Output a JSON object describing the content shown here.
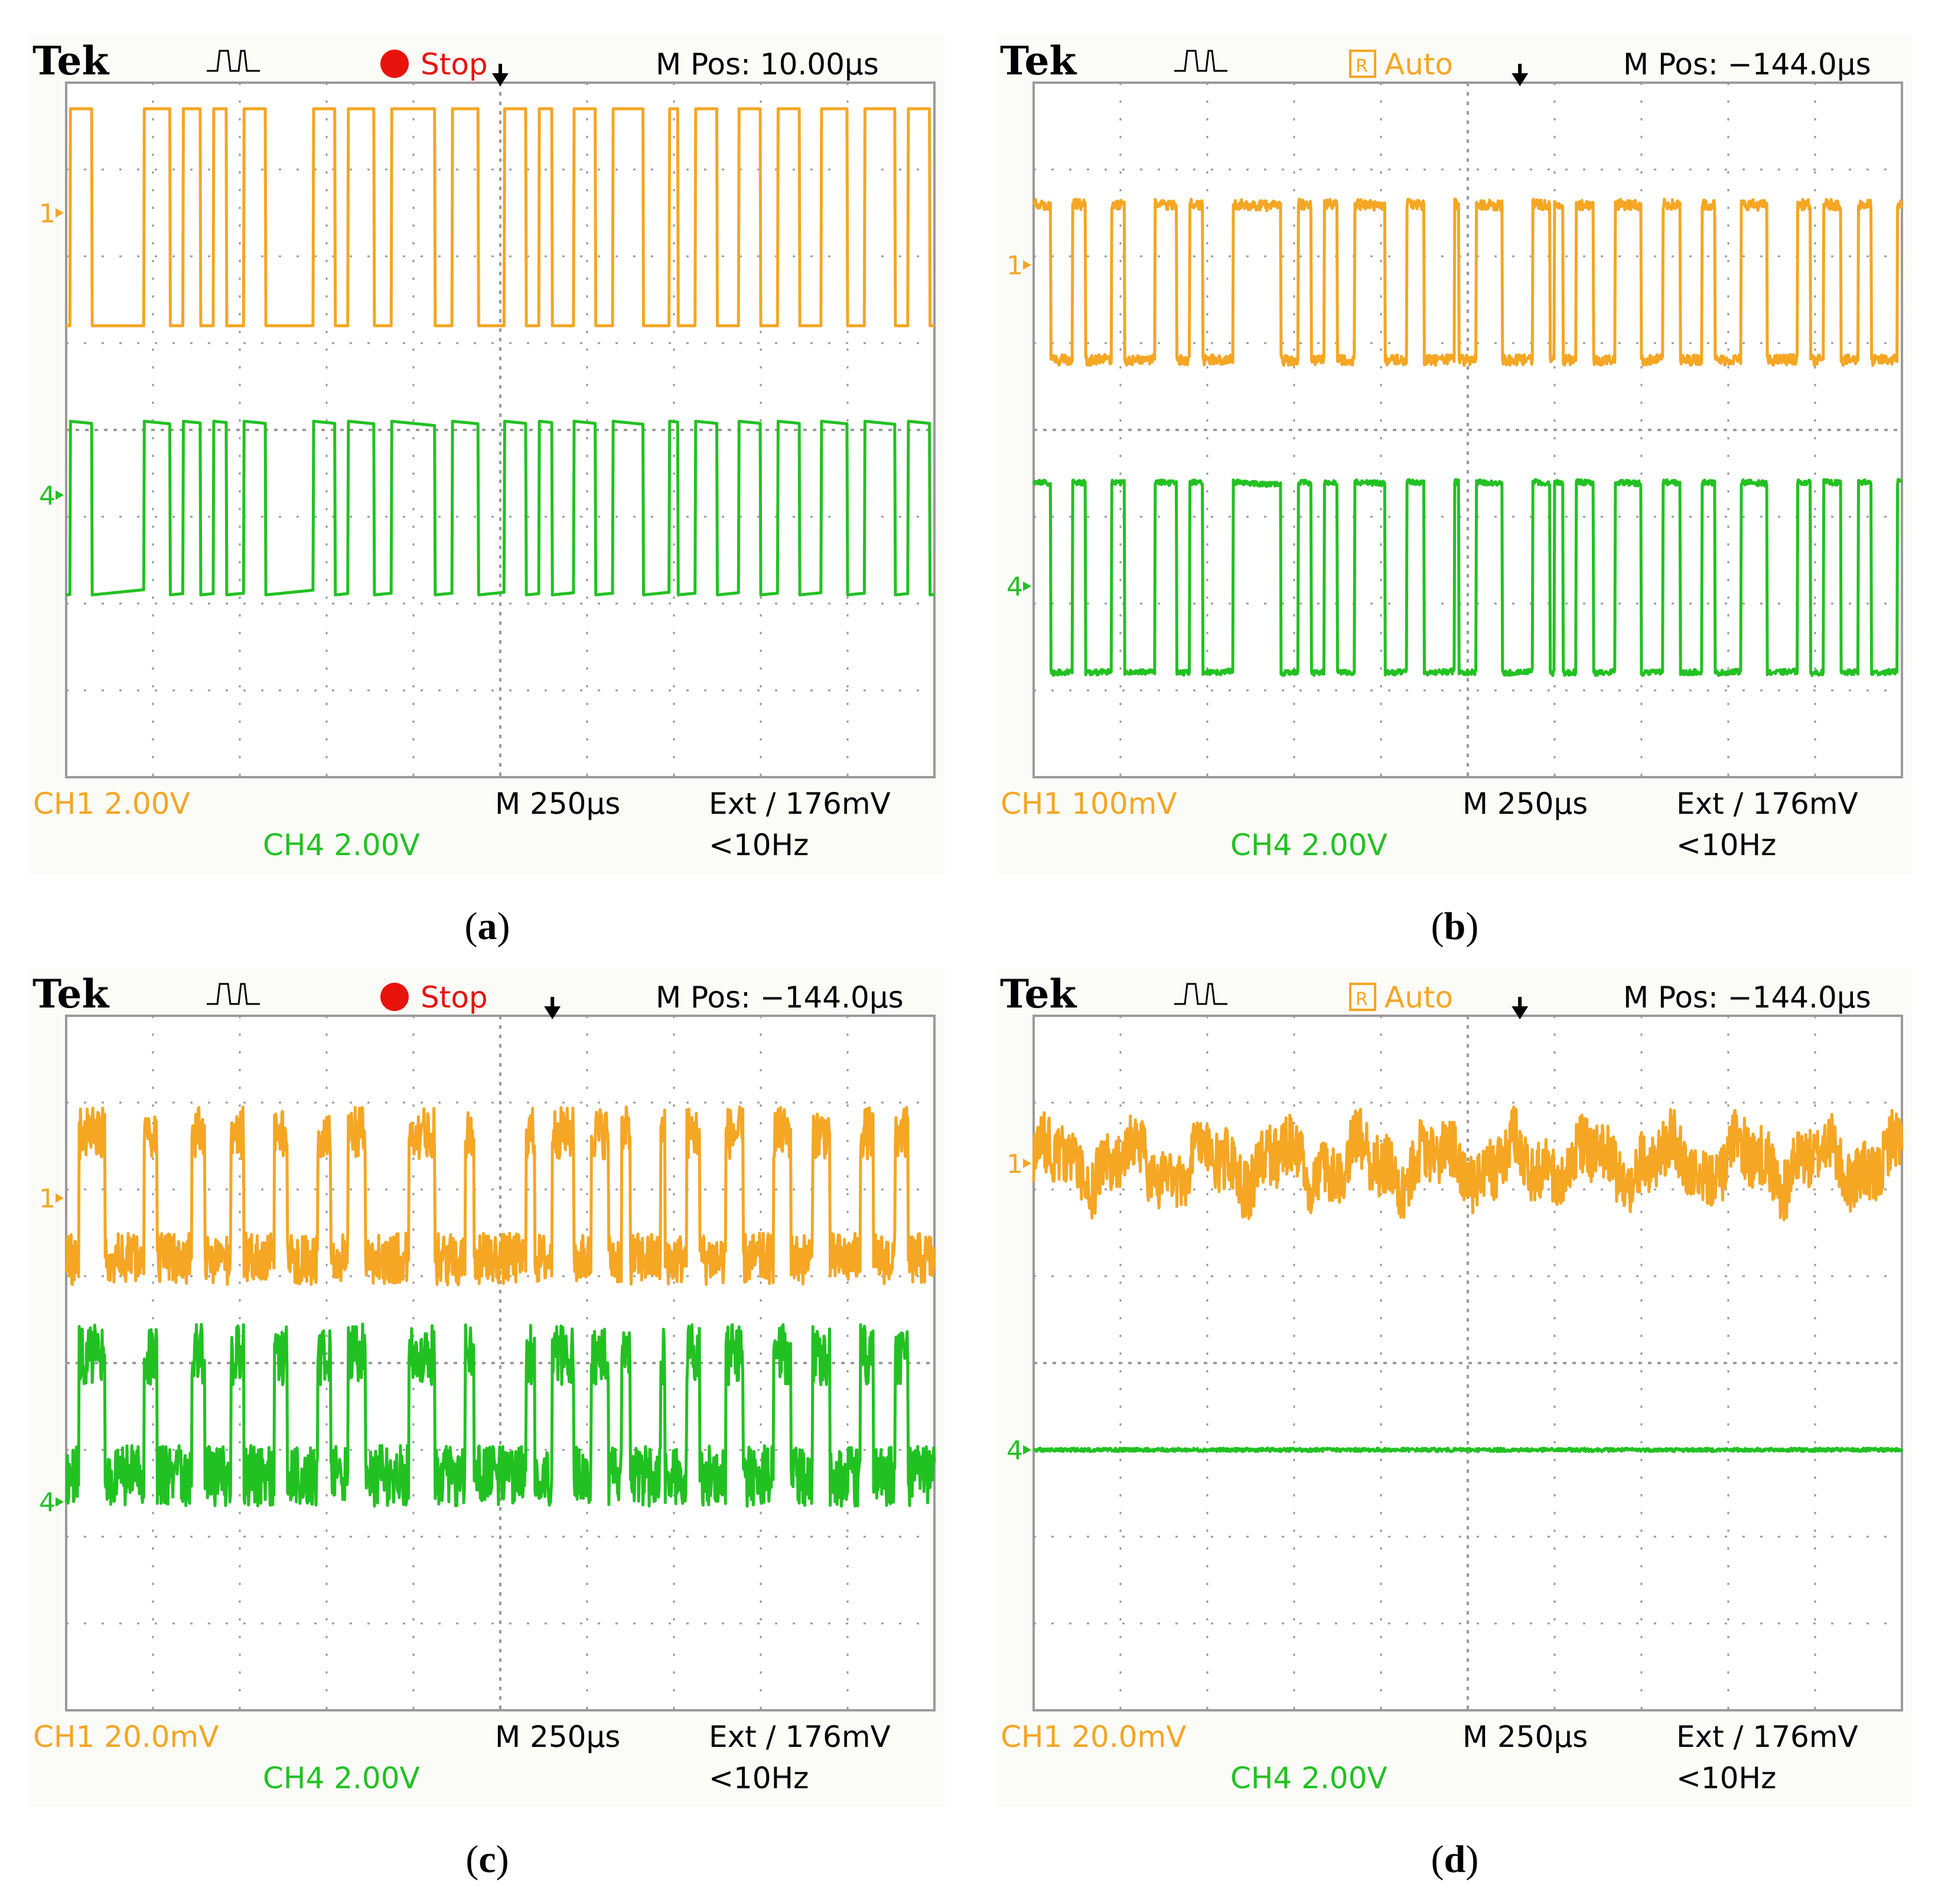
{
  "figure": {
    "panels": [
      {
        "caption_letter": "a",
        "header": {
          "brand": "Tek",
          "acq_state": "Stop",
          "acq_state_type": "stop",
          "m_pos": "M Pos: 10.00µs"
        },
        "footer": {
          "ch1": "CH1  2.00V",
          "ch4": "CH4  2.00V",
          "timebase": "M 250µs",
          "trigger": "Ext ∕ 176mV",
          "freq": "<10Hz"
        },
        "markers": {
          "ch1": "1",
          "ch4": "4"
        }
      },
      {
        "caption_letter": "b",
        "header": {
          "brand": "Tek",
          "acq_state": "Auto",
          "acq_state_type": "auto",
          "m_pos": "M Pos: −144.0µs"
        },
        "footer": {
          "ch1": "CH1  100mV",
          "ch4": "CH4  2.00V",
          "timebase": "M 250µs",
          "trigger": "Ext ∕ 176mV",
          "freq": "<10Hz"
        },
        "markers": {
          "ch1": "1",
          "ch4": "4"
        }
      },
      {
        "caption_letter": "c",
        "header": {
          "brand": "Tek",
          "acq_state": "Stop",
          "acq_state_type": "stop",
          "m_pos": "M Pos: −144.0µs"
        },
        "footer": {
          "ch1": "CH1  20.0mV",
          "ch4": "CH4  2.00V",
          "timebase": "M 250µs",
          "trigger": "Ext ∕ 176mV",
          "freq": "<10Hz"
        },
        "markers": {
          "ch1": "1",
          "ch4": "4"
        }
      },
      {
        "caption_letter": "d",
        "header": {
          "brand": "Tek",
          "acq_state": "Auto",
          "acq_state_type": "auto",
          "m_pos": "M Pos: −144.0µs"
        },
        "footer": {
          "ch1": "CH1  20.0mV",
          "ch4": "CH4  2.00V",
          "timebase": "M 250µs",
          "trigger": "Ext ∕ 176mV",
          "freq": "<10Hz"
        },
        "markers": {
          "ch1": "1",
          "ch4": "4"
        }
      }
    ]
  },
  "colors": {
    "ch1": "#f5a623",
    "ch4": "#22c122",
    "grid": "#9a9a9a",
    "stop": "#e8130c",
    "text": "#000000"
  },
  "chart_data": [
    {
      "type": "line",
      "title": "(a)",
      "x_unit": "divisions (250µs/div)",
      "xlim": [
        0,
        10
      ],
      "ylim": [
        0,
        8
      ],
      "series": [
        {
          "name": "CH1",
          "kind": "square",
          "levels": [
            5.2,
            7.7
          ],
          "noise": 0.0,
          "edges": [
            0.05,
            0.3,
            0.9,
            1.2,
            1.35,
            1.55,
            1.7,
            1.85,
            2.05,
            2.3,
            2.85,
            3.1,
            3.25,
            3.55,
            3.75,
            4.25,
            4.45,
            4.75,
            5.05,
            5.3,
            5.45,
            5.6,
            5.85,
            6.1,
            6.3,
            6.65,
            6.95,
            7.05,
            7.25,
            7.5,
            7.75,
            8.0,
            8.2,
            8.45,
            8.7,
            9.0,
            9.2,
            9.55,
            9.7,
            9.95
          ],
          "tilt": 0.0
        },
        {
          "name": "CH4",
          "kind": "square",
          "levels": [
            2.1,
            4.1
          ],
          "noise": 0.0,
          "edges": [
            0.05,
            0.3,
            0.9,
            1.2,
            1.35,
            1.55,
            1.7,
            1.85,
            2.05,
            2.3,
            2.85,
            3.1,
            3.25,
            3.55,
            3.75,
            4.25,
            4.45,
            4.75,
            5.05,
            5.3,
            5.45,
            5.6,
            5.85,
            6.1,
            6.3,
            6.65,
            6.95,
            7.05,
            7.25,
            7.5,
            7.75,
            8.0,
            8.2,
            8.45,
            8.7,
            9.0,
            9.2,
            9.55,
            9.7,
            9.95
          ],
          "tilt": 0.25
        }
      ]
    },
    {
      "type": "line",
      "title": "(b)",
      "x_unit": "divisions (250µs/div)",
      "xlim": [
        0,
        10
      ],
      "ylim": [
        0,
        8
      ],
      "series": [
        {
          "name": "CH1",
          "kind": "square",
          "levels": [
            4.8,
            6.6
          ],
          "noise": 0.06,
          "edges": [
            0.0,
            0.2,
            0.45,
            0.6,
            0.9,
            1.05,
            1.4,
            1.65,
            1.8,
            1.95,
            2.3,
            2.85,
            3.05,
            3.2,
            3.35,
            3.5,
            3.7,
            4.05,
            4.3,
            4.5,
            4.85,
            4.9,
            5.1,
            5.4,
            5.75,
            5.95,
            6.0,
            6.1,
            6.25,
            6.45,
            6.7,
            7.0,
            7.25,
            7.45,
            7.7,
            7.85,
            8.15,
            8.45,
            8.8,
            8.95,
            9.1,
            9.3,
            9.5,
            9.65,
            9.95
          ],
          "tilt": 0.12
        },
        {
          "name": "CH4",
          "kind": "square",
          "levels": [
            1.2,
            3.4
          ],
          "noise": 0.03,
          "edges": [
            0.0,
            0.2,
            0.45,
            0.6,
            0.9,
            1.05,
            1.4,
            1.65,
            1.8,
            1.95,
            2.3,
            2.85,
            3.05,
            3.2,
            3.35,
            3.5,
            3.7,
            4.05,
            4.3,
            4.5,
            4.85,
            4.9,
            5.1,
            5.4,
            5.75,
            5.95,
            6.0,
            6.1,
            6.25,
            6.45,
            6.7,
            7.0,
            7.25,
            7.45,
            7.7,
            7.85,
            8.15,
            8.45,
            8.8,
            8.95,
            9.1,
            9.3,
            9.5,
            9.65,
            9.95
          ],
          "tilt": 0.15
        }
      ]
    },
    {
      "type": "line",
      "title": "(c)",
      "x_unit": "divisions (250µs/div)",
      "xlim": [
        0,
        10
      ],
      "ylim": [
        0,
        8
      ],
      "series": [
        {
          "name": "CH1",
          "kind": "square",
          "levels": [
            5.2,
            6.65
          ],
          "noise": 0.3,
          "edges": [
            0.15,
            0.45,
            0.9,
            1.05,
            1.45,
            1.6,
            1.9,
            2.05,
            2.4,
            2.55,
            2.9,
            3.05,
            3.25,
            3.45,
            3.95,
            4.25,
            4.6,
            4.7,
            5.3,
            5.4,
            5.6,
            5.85,
            6.05,
            6.25,
            6.4,
            6.5,
            6.85,
            6.9,
            7.15,
            7.3,
            7.6,
            7.8,
            8.15,
            8.35,
            8.6,
            8.8,
            9.15,
            9.3,
            9.55,
            9.7
          ],
          "tilt": 0.0
        },
        {
          "name": "CH4",
          "kind": "square",
          "levels": [
            2.7,
            4.1
          ],
          "noise": 0.35,
          "edges": [
            0.15,
            0.45,
            0.9,
            1.05,
            1.45,
            1.6,
            1.9,
            2.05,
            2.4,
            2.55,
            2.9,
            3.05,
            3.25,
            3.45,
            3.95,
            4.25,
            4.6,
            4.7,
            5.3,
            5.4,
            5.6,
            5.85,
            6.05,
            6.25,
            6.4,
            6.5,
            6.85,
            6.9,
            7.15,
            7.3,
            7.6,
            7.8,
            8.15,
            8.35,
            8.6,
            8.8,
            9.15,
            9.3,
            9.55,
            9.7
          ],
          "tilt": 0.0
        }
      ]
    },
    {
      "type": "line",
      "title": "(d)",
      "x_unit": "divisions (250µs/div)",
      "xlim": [
        0,
        10
      ],
      "ylim": [
        0,
        8
      ],
      "series": [
        {
          "name": "CH1",
          "kind": "noise",
          "levels": [
            6.3,
            6.3
          ],
          "noise": 0.35,
          "edges": [],
          "tilt": 0.0
        },
        {
          "name": "CH4",
          "kind": "flat",
          "levels": [
            3.0,
            3.0
          ],
          "noise": 0.02,
          "edges": [],
          "tilt": 0.0
        }
      ]
    }
  ]
}
